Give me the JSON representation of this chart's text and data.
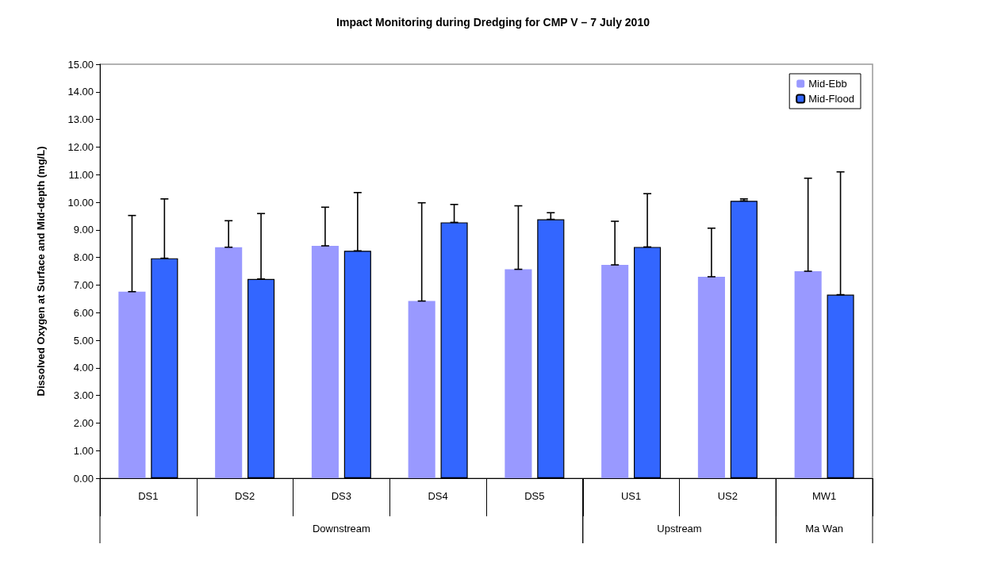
{
  "chart_data": {
    "type": "bar",
    "title": "Impact Monitoring during Dredging for CMP V – 7 July 2010",
    "ylabel": "Dissolved Oxygen at Surface and Mid-depth (mg/L)",
    "categories": [
      "DS1",
      "DS2",
      "DS3",
      "DS4",
      "DS5",
      "US1",
      "US2",
      "MW1"
    ],
    "annotations": [
      "Downstream",
      "Upstream",
      "Ma Wan"
    ],
    "series": [
      {
        "name": "Mid-Ebb",
        "color": "#9999ff",
        "values": [
          6.76,
          8.37,
          8.42,
          6.42,
          7.57,
          7.73,
          7.3,
          7.5
        ],
        "errors": [
          [
            6.76,
            9.52
          ],
          [
            8.37,
            9.33
          ],
          [
            8.42,
            9.82
          ],
          [
            6.42,
            9.98
          ],
          [
            7.57,
            9.87
          ],
          [
            7.73,
            9.31
          ],
          [
            7.3,
            9.06
          ],
          [
            7.5,
            10.87
          ]
        ]
      },
      {
        "name": "Mid-Flood",
        "color": "#3366ff",
        "values": [
          7.97,
          7.22,
          8.24,
          9.27,
          9.38,
          8.38,
          10.05,
          6.65
        ],
        "errors": [
          [
            7.97,
            10.12
          ],
          [
            7.22,
            9.59
          ],
          [
            8.24,
            10.35
          ],
          [
            9.27,
            9.92
          ],
          [
            9.38,
            9.62
          ],
          [
            8.38,
            10.31
          ],
          [
            10.05,
            10.12
          ],
          [
            6.65,
            11.1
          ]
        ]
      }
    ],
    "ylim": [
      0,
      15
    ],
    "yticks": [
      {
        "value": 0,
        "label": "0.00"
      },
      {
        "value": 1,
        "label": "1.00"
      },
      {
        "value": 2,
        "label": "2.00"
      },
      {
        "value": 3,
        "label": "3.00"
      },
      {
        "value": 4,
        "label": "4.00"
      },
      {
        "value": 5,
        "label": "5.00"
      },
      {
        "value": 6,
        "label": "6.00"
      },
      {
        "value": 7,
        "label": "7.00"
      },
      {
        "value": 8,
        "label": "8.00"
      },
      {
        "value": 9,
        "label": "9.00"
      },
      {
        "value": 10,
        "label": "10.00"
      },
      {
        "value": 11,
        "label": "11.00"
      },
      {
        "value": 12,
        "label": "12.00"
      },
      {
        "value": 13,
        "label": "13.00"
      },
      {
        "value": 14,
        "label": "14.00"
      },
      {
        "value": 15,
        "label": "15.00"
      }
    ],
    "grid": false,
    "legend": "top right"
  }
}
